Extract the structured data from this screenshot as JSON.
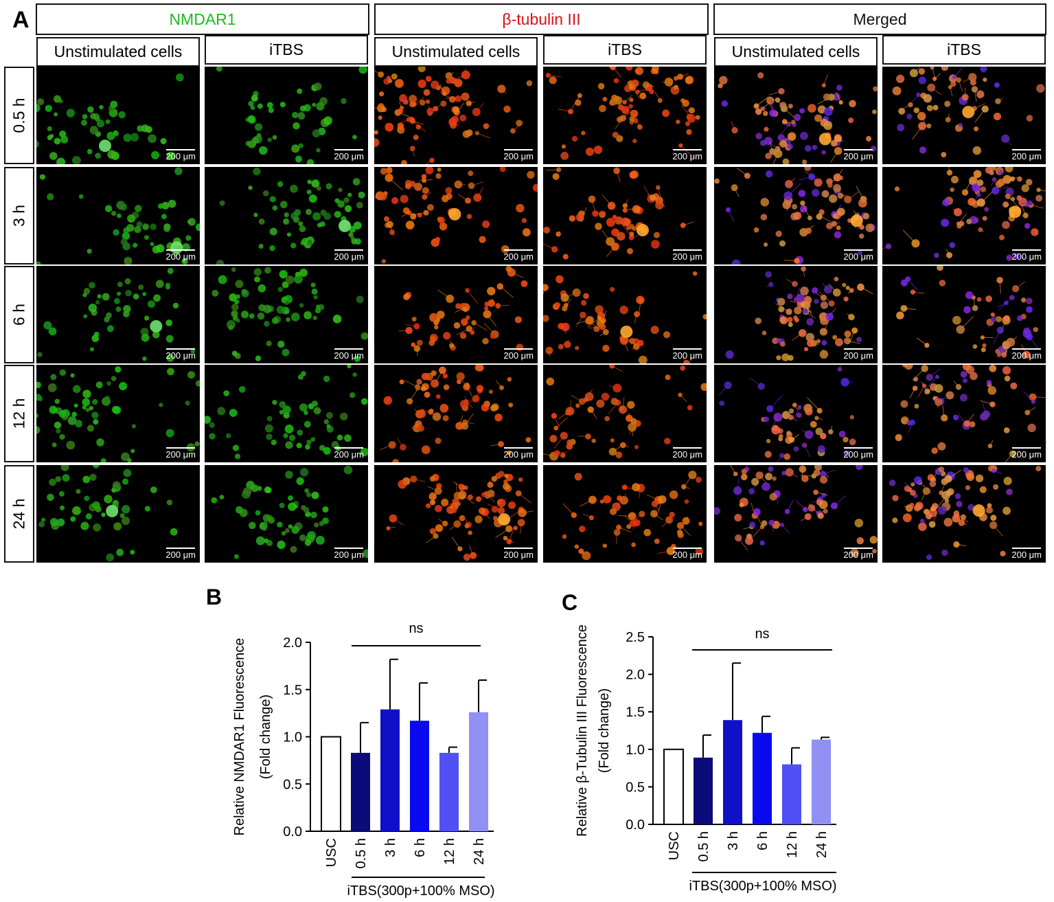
{
  "panel_a": {
    "label": "A",
    "groups": [
      {
        "title": "NMDAR1",
        "color": "#1fb81f"
      },
      {
        "title": "β-tubulin III",
        "color": "#e01010"
      },
      {
        "title": "Merged",
        "color": "#111111"
      }
    ],
    "conditions": [
      "Unstimulated cells",
      "iTBS"
    ],
    "timepoints": [
      "0.5 h",
      "3 h",
      "6 h",
      "12 h",
      "24 h"
    ],
    "scale_bar": "200 μm",
    "stains": [
      "green",
      "red",
      "merged"
    ]
  },
  "chart_data": [
    {
      "panel": "B",
      "type": "bar",
      "categories": [
        "USC",
        "0.5 h",
        "3 h",
        "6 h",
        "12 h",
        "24 h"
      ],
      "values": [
        1.0,
        0.83,
        1.29,
        1.17,
        0.83,
        1.26
      ],
      "errors": [
        0,
        0.32,
        0.53,
        0.4,
        0.06,
        0.34
      ],
      "colors": [
        "#ffffff",
        "#0b0b7a",
        "#1010c8",
        "#0a0af0",
        "#5050f5",
        "#9090f5"
      ],
      "ylabel_line1": "Relative NMDAR1 Fluorescence",
      "ylabel_line2": "(Fold change)",
      "ylim": [
        0,
        2.0
      ],
      "yticks": [
        "0.0",
        "0.5",
        "1.0",
        "1.5",
        "2.0"
      ],
      "significance": "ns",
      "group_label": "iTBS(300p+100% MSO)"
    },
    {
      "panel": "C",
      "type": "bar",
      "categories": [
        "USC",
        "0.5 h",
        "3 h",
        "6 h",
        "12 h",
        "24 h"
      ],
      "values": [
        1.0,
        0.89,
        1.39,
        1.22,
        0.8,
        1.13
      ],
      "errors": [
        0,
        0.3,
        0.76,
        0.22,
        0.22,
        0.03
      ],
      "colors": [
        "#ffffff",
        "#0b0b7a",
        "#1010c8",
        "#0a0af0",
        "#5050f5",
        "#9090f5"
      ],
      "ylabel_line1": "Relative β-Tubulin III  Fluorescence",
      "ylabel_line2": "(Fold change)",
      "ylim": [
        0,
        2.5
      ],
      "yticks": [
        "0.0",
        "0.5",
        "1.0",
        "1.5",
        "2.0",
        "2.5"
      ],
      "significance": "ns",
      "group_label": "iTBS(300p+100% MSO)"
    }
  ]
}
